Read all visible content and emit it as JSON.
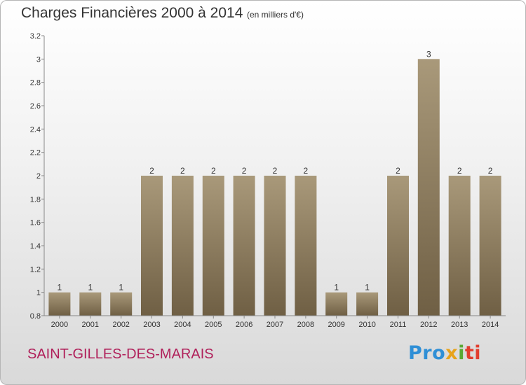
{
  "title": "Charges Financières 2000 à 2014",
  "subtitle": "(en milliers d'€)",
  "commune": "SAINT-GILLES-DES-MARAIS",
  "logo": {
    "p1": "Pro",
    "p2": "x",
    "p3": "i",
    "p4": "ti"
  },
  "colors": {
    "bar_top": "#a9997a",
    "bar_bottom": "#6f5f44",
    "axis": "#888888",
    "text": "#333333",
    "accent": "#b0205a"
  },
  "chart_data": {
    "type": "bar",
    "categories": [
      "2000",
      "2001",
      "2002",
      "2003",
      "2004",
      "2005",
      "2006",
      "2007",
      "2008",
      "2009",
      "2010",
      "2011",
      "2012",
      "2013",
      "2014"
    ],
    "values": [
      1,
      1,
      1,
      2,
      2,
      2,
      2,
      2,
      2,
      1,
      1,
      2,
      3,
      2,
      2
    ],
    "data_labels": [
      "1",
      "1",
      "1",
      "2",
      "2",
      "2",
      "2",
      "2",
      "2",
      "1",
      "1",
      "2",
      "3",
      "2",
      "2"
    ],
    "ylim": [
      0.8,
      3.2
    ],
    "yticks": [
      "0.8",
      "1",
      "1.2",
      "1.4",
      "1.6",
      "1.8",
      "2",
      "2.2",
      "2.4",
      "2.6",
      "2.8",
      "3",
      "3.2"
    ],
    "grid": false,
    "legend": "none"
  }
}
